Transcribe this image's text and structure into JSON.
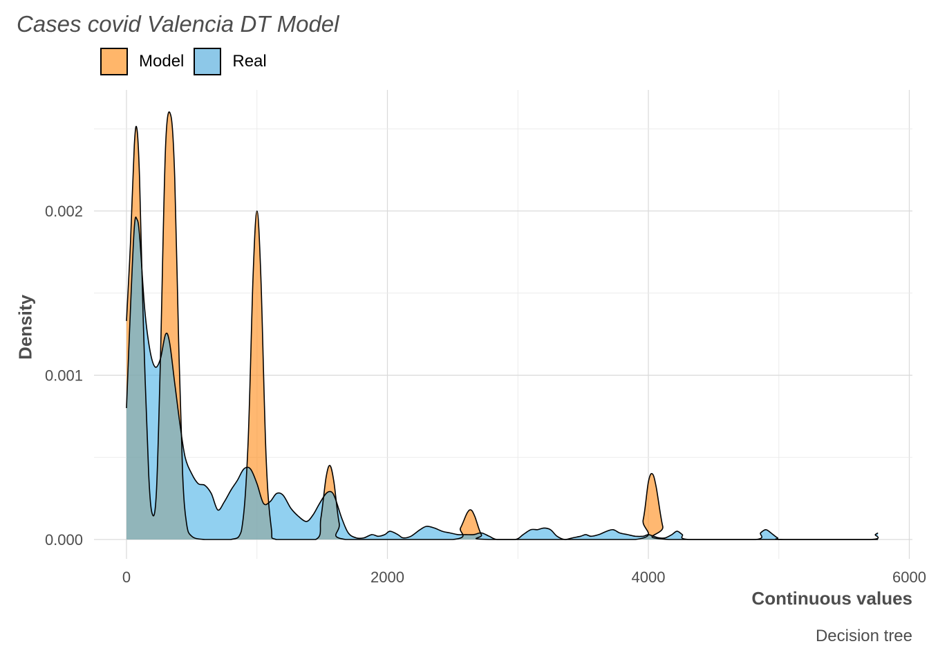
{
  "chart_data": {
    "type": "area",
    "title": "Cases covid Valencia DT Model",
    "xlabel": "Continuous values",
    "ylabel": "Density",
    "caption": "Decision tree",
    "xlim": [
      -250,
      6000
    ],
    "ylim": [
      -0.0001,
      0.00272
    ],
    "x_ticks": [
      0,
      2000,
      4000,
      6000
    ],
    "x_tick_labels": [
      "0",
      "2000",
      "4000",
      "6000"
    ],
    "y_ticks": [
      0,
      0.001,
      0.002
    ],
    "y_tick_labels": [
      "0.000",
      "0.001",
      "0.002"
    ],
    "grid": true,
    "legend_position": "top-left",
    "series": [
      {
        "name": "Model",
        "color": "#ff8c1a",
        "points": [
          [
            0,
            0.00133
          ],
          [
            30,
            0.0018
          ],
          [
            60,
            0.0024
          ],
          [
            80,
            0.0025
          ],
          [
            100,
            0.0022
          ],
          [
            130,
            0.0013
          ],
          [
            170,
            0.0004
          ],
          [
            200,
            0.00015
          ],
          [
            230,
            0.0003
          ],
          [
            260,
            0.0011
          ],
          [
            300,
            0.0024
          ],
          [
            340,
            0.00258
          ],
          [
            370,
            0.0022
          ],
          [
            400,
            0.0012
          ],
          [
            430,
            0.0004
          ],
          [
            460,
            0.0001
          ],
          [
            500,
            2e-05
          ],
          [
            600,
            0.0
          ],
          [
            800,
            0.0
          ],
          [
            880,
            5e-05
          ],
          [
            930,
            0.00055
          ],
          [
            970,
            0.0016
          ],
          [
            1000,
            0.002
          ],
          [
            1030,
            0.0016
          ],
          [
            1070,
            0.0005
          ],
          [
            1110,
            7e-05
          ],
          [
            1150,
            0.0
          ],
          [
            1450,
            0.0
          ],
          [
            1490,
            0.00013
          ],
          [
            1530,
            0.00038
          ],
          [
            1560,
            0.00045
          ],
          [
            1590,
            0.00035
          ],
          [
            1630,
            0.0001
          ],
          [
            1680,
            0.0
          ],
          [
            2500,
            0.0
          ],
          [
            2560,
            7e-05
          ],
          [
            2610,
            0.00016
          ],
          [
            2640,
            0.00018
          ],
          [
            2670,
            0.00014
          ],
          [
            2720,
            3e-05
          ],
          [
            2780,
            0.0
          ],
          [
            3900,
            0.0
          ],
          [
            3960,
            0.00012
          ],
          [
            4000,
            0.00035
          ],
          [
            4030,
            0.0004
          ],
          [
            4060,
            0.00032
          ],
          [
            4110,
            8e-05
          ],
          [
            4160,
            0.0
          ],
          [
            5760,
            0.0
          ]
        ]
      },
      {
        "name": "Real",
        "color": "#4eb3e6",
        "points": [
          [
            0,
            0.0008
          ],
          [
            30,
            0.0014
          ],
          [
            60,
            0.0019
          ],
          [
            80,
            0.00195
          ],
          [
            100,
            0.00185
          ],
          [
            140,
            0.0014
          ],
          [
            180,
            0.00115
          ],
          [
            220,
            0.00105
          ],
          [
            260,
            0.0011
          ],
          [
            300,
            0.00125
          ],
          [
            330,
            0.0012
          ],
          [
            370,
            0.00095
          ],
          [
            410,
            0.0007
          ],
          [
            450,
            0.0005
          ],
          [
            500,
            0.0004
          ],
          [
            550,
            0.00034
          ],
          [
            600,
            0.00033
          ],
          [
            650,
            0.00028
          ],
          [
            700,
            0.00018
          ],
          [
            750,
            0.00023
          ],
          [
            800,
            0.0003
          ],
          [
            850,
            0.00036
          ],
          [
            900,
            0.00043
          ],
          [
            950,
            0.00043
          ],
          [
            1000,
            0.00034
          ],
          [
            1050,
            0.00022
          ],
          [
            1100,
            0.00023
          ],
          [
            1150,
            0.00028
          ],
          [
            1200,
            0.00027
          ],
          [
            1260,
            0.00019
          ],
          [
            1320,
            0.00014
          ],
          [
            1380,
            0.00011
          ],
          [
            1430,
            0.00015
          ],
          [
            1480,
            0.00022
          ],
          [
            1530,
            0.00028
          ],
          [
            1570,
            0.00029
          ],
          [
            1600,
            0.00025
          ],
          [
            1650,
            0.00013
          ],
          [
            1700,
            4e-05
          ],
          [
            1760,
            1e-05
          ],
          [
            1820,
            1e-05
          ],
          [
            1880,
            3e-05
          ],
          [
            1930,
            2e-05
          ],
          [
            1980,
            3e-05
          ],
          [
            2020,
            5e-05
          ],
          [
            2080,
            3e-05
          ],
          [
            2120,
            1e-05
          ],
          [
            2180,
            2e-05
          ],
          [
            2250,
            6e-05
          ],
          [
            2300,
            8e-05
          ],
          [
            2360,
            7e-05
          ],
          [
            2420,
            5e-05
          ],
          [
            2480,
            4e-05
          ],
          [
            2540,
            3e-05
          ],
          [
            2600,
            3e-05
          ],
          [
            2660,
            3e-05
          ],
          [
            2720,
            4e-05
          ],
          [
            2780,
            2e-05
          ],
          [
            2840,
            0.0
          ],
          [
            2980,
            0.0
          ],
          [
            3040,
            3e-05
          ],
          [
            3100,
            6e-05
          ],
          [
            3150,
            6e-05
          ],
          [
            3200,
            7e-05
          ],
          [
            3250,
            6e-05
          ],
          [
            3300,
            2e-05
          ],
          [
            3360,
            0.0
          ],
          [
            3420,
            1e-05
          ],
          [
            3480,
            2e-05
          ],
          [
            3520,
            3e-05
          ],
          [
            3560,
            2e-05
          ],
          [
            3620,
            3e-05
          ],
          [
            3680,
            5e-05
          ],
          [
            3730,
            6e-05
          ],
          [
            3780,
            4e-05
          ],
          [
            3840,
            3e-05
          ],
          [
            3900,
            2e-05
          ],
          [
            3960,
            2e-05
          ],
          [
            4000,
            3e-05
          ],
          [
            4040,
            2e-05
          ],
          [
            4080,
            1e-05
          ],
          [
            4130,
            1e-05
          ],
          [
            4180,
            3e-05
          ],
          [
            4220,
            5e-05
          ],
          [
            4260,
            3e-05
          ],
          [
            4310,
            0.0
          ],
          [
            4820,
            0.0
          ],
          [
            4860,
            4e-05
          ],
          [
            4900,
            6e-05
          ],
          [
            4940,
            4e-05
          ],
          [
            4990,
            1e-05
          ],
          [
            5040,
            0.0
          ],
          [
            5700,
            0.0
          ],
          [
            5740,
            3e-05
          ],
          [
            5760,
            4e-05
          ]
        ]
      }
    ]
  },
  "colors": {
    "blend": "#8fa9a8",
    "grid": "#d9d9d9",
    "outline": "#000000"
  },
  "legend": {
    "model_label": "Model",
    "real_label": "Real"
  }
}
